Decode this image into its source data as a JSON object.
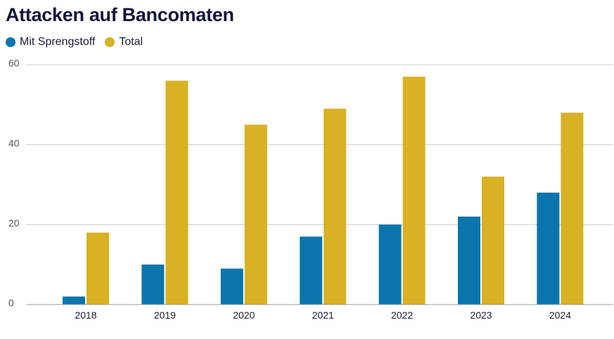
{
  "chart_data": {
    "type": "bar",
    "title": "Attacken auf Bancomaten",
    "categories": [
      "2018",
      "2019",
      "2020",
      "2021",
      "2022",
      "2023",
      "2024"
    ],
    "series": [
      {
        "name": "Mit Sprengstoff",
        "color": "#0a75ad",
        "values": [
          2,
          10,
          9,
          17,
          20,
          22,
          28
        ]
      },
      {
        "name": "Total",
        "color": "#d8b124",
        "values": [
          18,
          56,
          45,
          49,
          57,
          32,
          48
        ]
      }
    ],
    "y_ticks": [
      "0",
      "20",
      "40",
      "60"
    ],
    "ylim": [
      0,
      60
    ],
    "grid": true,
    "legend_position": "top-left",
    "xlabel": "",
    "ylabel": ""
  }
}
